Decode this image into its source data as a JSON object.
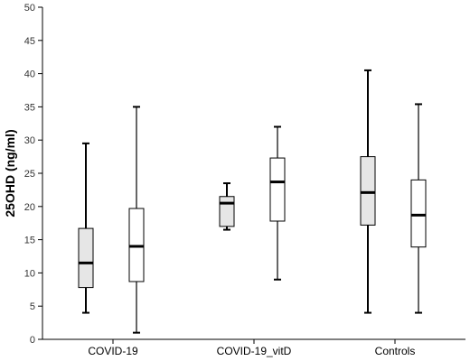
{
  "chart_data": {
    "type": "boxplot",
    "ylabel": "25OHD (ng/ml)",
    "xlabel": "",
    "ylim": [
      0,
      50
    ],
    "yticks": [
      0,
      5,
      10,
      15,
      20,
      25,
      30,
      35,
      40,
      45,
      50
    ],
    "categories": [
      "COVID-19",
      "COVID-19_vitD",
      "Controls"
    ],
    "grid": false,
    "series": [
      {
        "fill": "#e6e6e6",
        "boxes": [
          {
            "min": 4.0,
            "q1": 7.8,
            "median": 11.5,
            "q3": 16.7,
            "max": 29.5
          },
          {
            "min": 16.5,
            "q1": 17.0,
            "median": 20.5,
            "q3": 21.5,
            "max": 23.5
          },
          {
            "min": 4.0,
            "q1": 17.2,
            "median": 22.1,
            "q3": 27.5,
            "max": 40.5
          }
        ]
      },
      {
        "fill": "#ffffff",
        "boxes": [
          {
            "min": 1.0,
            "q1": 8.7,
            "median": 14.0,
            "q3": 19.7,
            "max": 35.0
          },
          {
            "min": 9.0,
            "q1": 17.8,
            "median": 23.7,
            "q3": 27.3,
            "max": 32.0
          },
          {
            "min": 4.0,
            "q1": 13.9,
            "median": 18.7,
            "q3": 24.0,
            "max": 35.4
          }
        ]
      }
    ]
  }
}
